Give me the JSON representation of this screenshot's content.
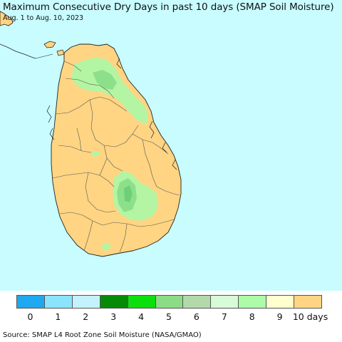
{
  "title": "Maximum Consecutive Dry Days in past 10 days (SMAP Soil Moisture)",
  "subtitle": "Aug. 1 to Aug. 10, 2023",
  "source": "Source: SMAP L4 Root Zone Soil Moisture (NASA/GMAO)",
  "colors": {
    "ocean": "#c8fcff",
    "land_dry": "#ffd583",
    "land_green": "#b3f5a3",
    "land_green_mid": "#8de08a",
    "land_green_dark": "#6fcf78",
    "coast": "#222222",
    "boundary": "#555555"
  },
  "legend": {
    "items": [
      {
        "label": "0",
        "color": "#1ea8f0"
      },
      {
        "label": "1",
        "color": "#8be4fd"
      },
      {
        "label": "2",
        "color": "#c4f2fc"
      },
      {
        "label": "3",
        "color": "#078a07"
      },
      {
        "label": "4",
        "color": "#0ce00c"
      },
      {
        "label": "5",
        "color": "#8bdc84"
      },
      {
        "label": "6",
        "color": "#b3d9aa"
      },
      {
        "label": "7",
        "color": "#d6fbd6"
      },
      {
        "label": "8",
        "color": "#adfba8"
      },
      {
        "label": "9",
        "color": "#fdffcc"
      },
      {
        "label": "10 days",
        "color": "#ffd583"
      }
    ]
  }
}
